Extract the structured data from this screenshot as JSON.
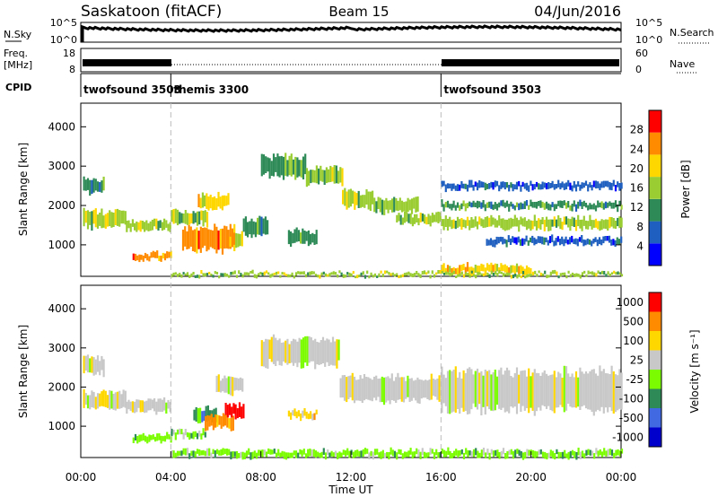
{
  "header": {
    "station": "Saskatoon (fitACF)",
    "beam": "Beam 15",
    "date": "04/Jun/2016"
  },
  "noise_panel": {
    "left_label": "N.Sky",
    "right_label": "N.Search",
    "left_ticks": [
      "10^5",
      "10^0"
    ],
    "right_ticks": [
      "10^5",
      "10^0"
    ]
  },
  "freq_panel": {
    "left_label_1": "Freq.",
    "left_label_2": "[MHz]",
    "right_label": "Nave",
    "left_ticks": [
      "18",
      "8"
    ],
    "right_ticks": [
      "60",
      "0"
    ]
  },
  "cpid_panel": {
    "label": "CPID",
    "segments": [
      {
        "name": "twofsound 3503",
        "start_hour": 0
      },
      {
        "name": "themis 3300",
        "start_hour": 4
      },
      {
        "name": "twofsound 3503",
        "start_hour": 16
      }
    ]
  },
  "x_axis": {
    "label": "Time UT",
    "ticks": [
      "00:00",
      "04:00",
      "08:00",
      "12:00",
      "16:00",
      "20:00",
      "00:00"
    ],
    "range_hours": [
      0,
      24
    ]
  },
  "chart_data": [
    {
      "type": "heatmap",
      "title": "Power",
      "ylabel": "Slant Range [km]",
      "yticks": [
        "1000",
        "2000",
        "3000",
        "4000"
      ],
      "ylim": [
        200,
        4600
      ],
      "colorbar_label": "Power [dB]",
      "colorbar_ticks": [
        "4",
        "8",
        "12",
        "16",
        "20",
        "24",
        "28"
      ],
      "colorbar_colors": [
        "#0000ff",
        "#1f5fbf",
        "#2e8b57",
        "#9acd32",
        "#ffd700",
        "#ff8c00",
        "#ff0000"
      ],
      "bands": [
        {
          "t0": 0.1,
          "t1": 2.0,
          "r0": 1400,
          "r1": 1900,
          "level": 3
        },
        {
          "t0": 0.1,
          "t1": 1.0,
          "r0": 2300,
          "r1": 2700,
          "level": 2
        },
        {
          "t0": 2.0,
          "t1": 4.0,
          "r0": 1350,
          "r1": 1650,
          "level": 3
        },
        {
          "t0": 2.3,
          "t1": 4.0,
          "r0": 600,
          "r1": 800,
          "level": 5
        },
        {
          "t0": 4.0,
          "t1": 5.6,
          "r0": 1500,
          "r1": 1900,
          "level": 3
        },
        {
          "t0": 4.5,
          "t1": 6.8,
          "r0": 800,
          "r1": 1500,
          "level": 5
        },
        {
          "t0": 5.2,
          "t1": 6.6,
          "r0": 1900,
          "r1": 2300,
          "level": 4
        },
        {
          "t0": 6.6,
          "t1": 7.2,
          "r0": 900,
          "r1": 1300,
          "level": 4
        },
        {
          "t0": 7.2,
          "t1": 8.3,
          "r0": 1200,
          "r1": 1700,
          "level": 2
        },
        {
          "t0": 8.0,
          "t1": 10.0,
          "r0": 2700,
          "r1": 3300,
          "level": 2
        },
        {
          "t0": 9.2,
          "t1": 10.5,
          "r0": 1000,
          "r1": 1400,
          "level": 2
        },
        {
          "t0": 10.0,
          "t1": 11.6,
          "r0": 2500,
          "r1": 3000,
          "level": 3
        },
        {
          "t0": 11.6,
          "t1": 13.0,
          "r0": 1900,
          "r1": 2400,
          "level": 3
        },
        {
          "t0": 13.0,
          "t1": 15.0,
          "r0": 1800,
          "r1": 2200,
          "level": 3
        },
        {
          "t0": 14.0,
          "t1": 16.0,
          "r0": 1500,
          "r1": 1800,
          "level": 3
        },
        {
          "t0": 16.0,
          "t1": 24.0,
          "r0": 1400,
          "r1": 1700,
          "level": 3
        },
        {
          "t0": 16.0,
          "t1": 24.0,
          "r0": 1900,
          "r1": 2100,
          "level": 2
        },
        {
          "t0": 16.0,
          "t1": 24.0,
          "r0": 2400,
          "r1": 2600,
          "level": 1
        },
        {
          "t0": 18.0,
          "t1": 24.0,
          "r0": 1000,
          "r1": 1200,
          "level": 1
        },
        {
          "t0": 16.0,
          "t1": 20.0,
          "r0": 250,
          "r1": 500,
          "level": 4
        },
        {
          "t0": 4.0,
          "t1": 24.0,
          "r0": 200,
          "r1": 300,
          "level": 3
        }
      ]
    },
    {
      "type": "heatmap",
      "title": "Velocity",
      "ylabel": "Slant Range [km]",
      "yticks": [
        "1000",
        "2000",
        "3000",
        "4000"
      ],
      "ylim": [
        200,
        4600
      ],
      "colorbar_label": "Velocity [m s⁻¹]",
      "colorbar_ticks": [
        "1000",
        "500",
        "100",
        "25",
        "-25",
        "-100",
        "-500",
        "-1000"
      ],
      "colorbar_colors": [
        "#0000cd",
        "#4169e1",
        "#2e8b57",
        "#7cfc00",
        "#c8c8c8",
        "#ffd700",
        "#ff8c00",
        "#ff0000"
      ],
      "bands": [
        {
          "t0": 0.1,
          "t1": 2.0,
          "r0": 1400,
          "r1": 1900,
          "level": 4
        },
        {
          "t0": 0.1,
          "t1": 1.0,
          "r0": 2300,
          "r1": 2800,
          "level": 4
        },
        {
          "t0": 2.0,
          "t1": 4.0,
          "r0": 1350,
          "r1": 1700,
          "level": 4
        },
        {
          "t0": 2.3,
          "t1": 4.0,
          "r0": 600,
          "r1": 800,
          "level": 3
        },
        {
          "t0": 4.0,
          "t1": 5.5,
          "r0": 700,
          "r1": 900,
          "level": 3
        },
        {
          "t0": 5.0,
          "t1": 6.0,
          "r0": 1100,
          "r1": 1500,
          "level": 2
        },
        {
          "t0": 5.5,
          "t1": 6.8,
          "r0": 900,
          "r1": 1300,
          "level": 6
        },
        {
          "t0": 6.4,
          "t1": 7.2,
          "r0": 1200,
          "r1": 1600,
          "level": 7
        },
        {
          "t0": 6.0,
          "t1": 7.2,
          "r0": 1800,
          "r1": 2300,
          "level": 4
        },
        {
          "t0": 8.0,
          "t1": 11.5,
          "r0": 2500,
          "r1": 3300,
          "level": 4
        },
        {
          "t0": 9.2,
          "t1": 10.5,
          "r0": 1200,
          "r1": 1400,
          "level": 5
        },
        {
          "t0": 11.5,
          "t1": 16.0,
          "r0": 1600,
          "r1": 2300,
          "level": 4
        },
        {
          "t0": 16.0,
          "t1": 24.0,
          "r0": 1300,
          "r1": 2500,
          "level": 4
        },
        {
          "t0": 4.0,
          "t1": 24.0,
          "r0": 200,
          "r1": 400,
          "level": 3
        }
      ]
    }
  ]
}
